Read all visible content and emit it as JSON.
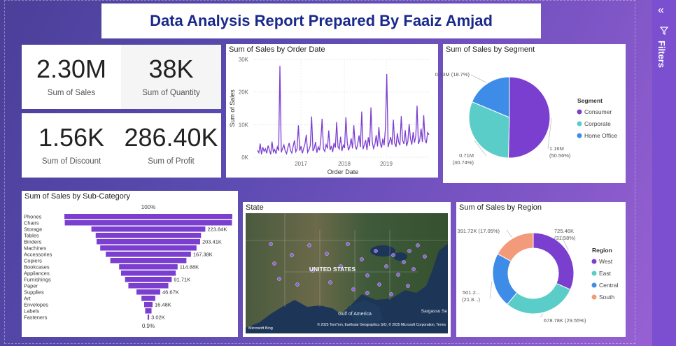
{
  "report_title": "Data Analysis Report Prepared By Faaiz Amjad",
  "kpis": {
    "sales": {
      "value": "2.30M",
      "label": "Sum of Sales"
    },
    "quantity": {
      "value": "38K",
      "label": "Sum of Quantity"
    },
    "discount": {
      "value": "1.56K",
      "label": "Sum of Discount"
    },
    "profit": {
      "value": "286.40K",
      "label": "Sum of Profit"
    }
  },
  "filters_pane": {
    "label": "Filters"
  },
  "map": {
    "title": "State",
    "country_label": "UNITED STATES",
    "gulf_label": "Gulf of America",
    "sea_label": "Sargasso Se",
    "attribution": "© 2025 TomTom, Earthstar Geographics SIO, © 2025 Microsoft Corporation,  Terms",
    "bing_label": "Microsoft Bing"
  },
  "chart_data": [
    {
      "type": "line",
      "title": "Sum of Sales by Order Date",
      "xlabel": "Order Date",
      "ylabel": "Sum of Sales",
      "y_ticks": [
        "0K",
        "10K",
        "20K",
        "30K"
      ],
      "x_ticks": [
        "2017",
        "2018",
        "2019"
      ],
      "ylim": [
        0,
        30000
      ],
      "color": "#7b3fd0",
      "series": [
        {
          "values": [
            2100,
            1400,
            4200,
            900,
            3100,
            1800,
            2600,
            1200,
            3600,
            2200,
            900,
            4800,
            1600,
            2400,
            1100,
            3200,
            2000,
            28000,
            1500,
            2700,
            3800,
            1900,
            1100,
            2900,
            4400,
            2100,
            1300,
            3300,
            5200,
            1700,
            2600,
            9800,
            2000,
            3400,
            1200,
            2800,
            4100,
            6900,
            1500,
            2300,
            3600,
            12500,
            1900,
            2700,
            4700,
            1400,
            3200,
            2100,
            5600,
            11800,
            2600,
            1800,
            3900,
            2700,
            8200,
            2200,
            3500,
            1600,
            4400,
            2900,
            10800,
            3200,
            2500,
            6300,
            1900,
            3700,
            2800,
            12300,
            4600,
            2100,
            3300,
            5800,
            2700,
            9800,
            3900,
            2400,
            4100,
            6700,
            3100,
            14000,
            2500,
            3800,
            5300,
            2200,
            6100,
            3400,
            15300,
            4600,
            2700,
            3900,
            6800,
            3300,
            9200,
            4400,
            2900,
            5700,
            3600,
            8900,
            25500,
            3100,
            4700,
            6200,
            3800,
            11500,
            4300,
            3200,
            7400,
            4600,
            3700,
            12600,
            5200,
            4100,
            8300,
            3400,
            4800,
            10200,
            5600,
            3900,
            7700,
            4500,
            6600,
            15800,
            4100,
            5200,
            8800,
            4700,
            12900,
            5400,
            4300,
            7600,
            6900
          ]
        }
      ]
    },
    {
      "type": "pie",
      "title": "Sum of Sales by Segment",
      "legend_title": "Segment",
      "slices": [
        {
          "name": "Consumer",
          "value": 1.16,
          "label": "1.16M\n(50.56%)",
          "color": "#7b3fd0"
        },
        {
          "name": "Corporate",
          "value": 0.71,
          "label": "0.71M\n(30.74%)",
          "color": "#5bcdc8"
        },
        {
          "name": "Home Office",
          "value": 0.43,
          "label": "0.43M (18.7%)",
          "color": "#3d8de8"
        }
      ]
    },
    {
      "type": "bar",
      "title": "Sum of Sales by Sub-Category",
      "top_label": "100%",
      "bottom_label": "0.9%",
      "color": "#7b3fd0",
      "categories": [
        "Phones",
        "Chairs",
        "Storage",
        "Tables",
        "Binders",
        "Machines",
        "Accessories",
        "Copiers",
        "Bookcases",
        "Appliances",
        "Furnishings",
        "Paper",
        "Supplies",
        "Art",
        "Envelopes",
        "Labels",
        "Fasteners"
      ],
      "values": [
        330007,
        328449,
        223844,
        206966,
        203413,
        189239,
        167380,
        149528,
        114880,
        107532,
        91705,
        78479,
        46674,
        27119,
        16476,
        12486,
        3024
      ],
      "data_labels": [
        "",
        "",
        "223.84K",
        "",
        "203.41K",
        "",
        "167.38K",
        "",
        "114.88K",
        "",
        "91.71K",
        "",
        "46.67K",
        "",
        "16.48K",
        "",
        "3.02K"
      ]
    },
    {
      "type": "pie",
      "title": "Sum of Sales by Region",
      "legend_title": "Region",
      "slices": [
        {
          "name": "West",
          "value": 725.46,
          "label": "725.46K\n(31.58%)",
          "color": "#7b3fd0"
        },
        {
          "name": "East",
          "value": 678.78,
          "label": "678.78K (29.55%)",
          "color": "#5bcdc8"
        },
        {
          "name": "Central",
          "value": 501.24,
          "label": "501.2...\n(21.8...)",
          "color": "#3d8de8"
        },
        {
          "name": "South",
          "value": 391.72,
          "label": "391.72K (17.05%)",
          "color": "#f29a7a"
        }
      ]
    }
  ]
}
